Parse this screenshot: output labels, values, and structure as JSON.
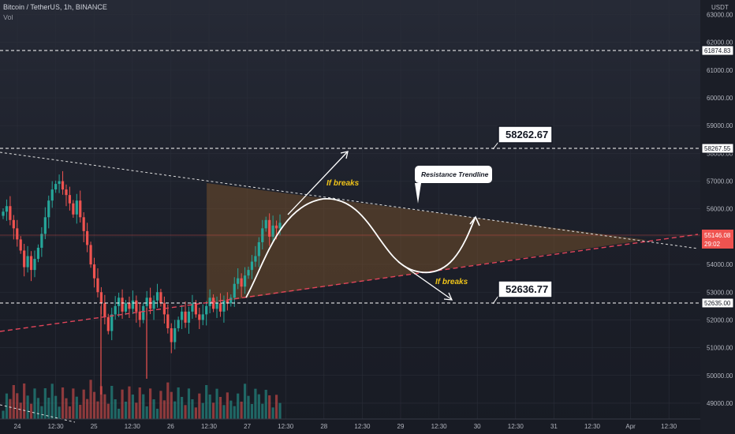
{
  "header": {
    "title": "Bitcoin / TetherUS, 1h, BINANCE",
    "indicator": "Vol"
  },
  "axis": {
    "currency": "USDT",
    "y_ticks": [
      "63000.00",
      "62000.00",
      "61000.00",
      "60000.00",
      "59000.00",
      "58000.00",
      "57000.00",
      "56000.00",
      "55000.00",
      "54000.00",
      "53000.00",
      "52000.00",
      "51000.00",
      "50000.00",
      "49000.00"
    ],
    "x_ticks": [
      "24",
      "12:30",
      "25",
      "12:30",
      "26",
      "12:30",
      "27",
      "12:30",
      "28",
      "12:30",
      "29",
      "12:30",
      "30",
      "12:30",
      "31",
      "12:30",
      "Apr",
      "12:30"
    ]
  },
  "price_tags": {
    "level_high": "61874.83",
    "level_resistance": "58267.55",
    "current_price": "55146.08",
    "countdown": "29:02",
    "level_support": "52635.00"
  },
  "annotations": {
    "box_high": "58262.67",
    "box_low": "52636.77",
    "if_breaks_up": "If breaks",
    "if_breaks_down": "If breaks",
    "callout": "Resistance Trendline"
  },
  "colors": {
    "up": "#26a69a",
    "down": "#ef5350",
    "triangle_fill": "#8a5a2b",
    "support_line": "#e2455a",
    "current_tag": "#ef5350"
  },
  "chart_data": {
    "type": "candlestick",
    "y_range": [
      48600,
      63300
    ],
    "price_series_close": [
      55900,
      56100,
      55600,
      55300,
      54900,
      54500,
      53900,
      54300,
      53800,
      54200,
      54600,
      55100,
      55700,
      56300,
      56700,
      56900,
      57000,
      56700,
      56500,
      56200,
      55800,
      56300,
      55700,
      55200,
      54700,
      54000,
      53500,
      53000,
      52600,
      52100,
      51600,
      52200,
      52500,
      52800,
      52300,
      52600,
      52400,
      52700,
      52300,
      52000,
      52500,
      52800,
      52400,
      52700,
      53000,
      52600,
      52200,
      51700,
      51200,
      51700,
      52000,
      52300,
      51900,
      52300,
      52600,
      52200,
      52000,
      52200,
      52500,
      52800,
      52400,
      52600,
      52300,
      52700,
      52600,
      52800,
      53300,
      53500,
      53200,
      53600,
      53800,
      54100,
      54300,
      54800,
      55300,
      55600,
      55000,
      55400,
      55300,
      55500
    ],
    "levels": [
      61874.83,
      58267.55,
      52635.0
    ],
    "current_price": 55146.08
  }
}
